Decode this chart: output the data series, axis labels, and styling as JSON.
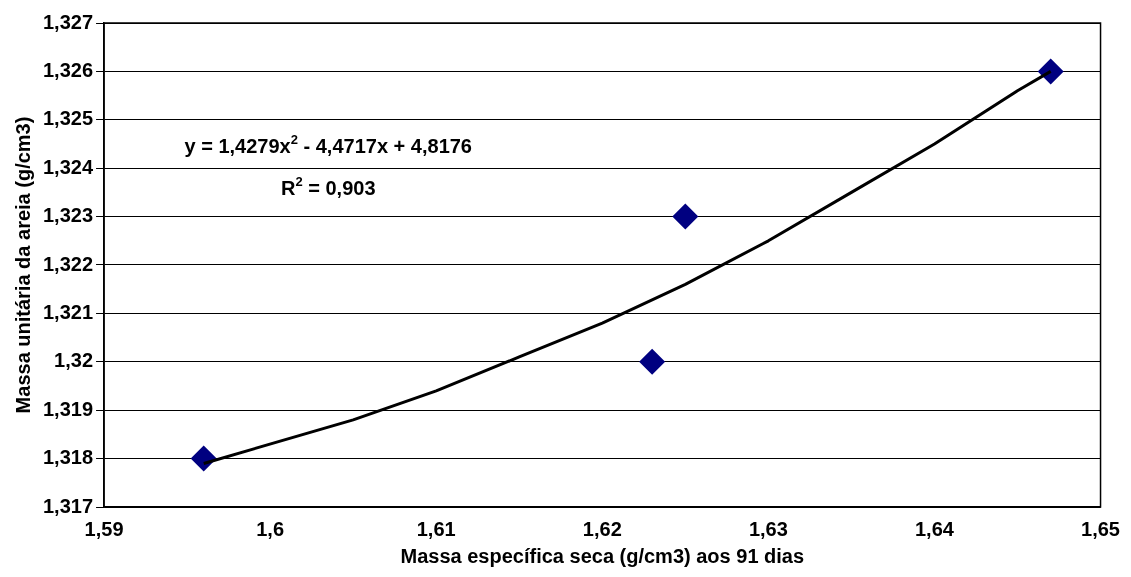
{
  "chart_data": {
    "type": "scatter",
    "xlabel": "Massa específica seca (g/cm3) aos 91 dias",
    "ylabel": "Massa unitária da areia (g/cm3)",
    "series": [
      {
        "type": "scatter",
        "color": "#000080",
        "marker": "diamond",
        "x": [
          1.596,
          1.623,
          1.625,
          1.647
        ],
        "values": [
          1.318,
          1.32,
          1.323,
          1.326
        ]
      },
      {
        "type": "line",
        "color": "#000000",
        "marker": "none",
        "line_style": "solid",
        "x": [
          1.596,
          1.605,
          1.61,
          1.615,
          1.62,
          1.625,
          1.63,
          1.635,
          1.64,
          1.645,
          1.647
        ],
        "values": [
          1.3179,
          1.3188,
          1.3194,
          1.3201,
          1.3208,
          1.3216,
          1.3225,
          1.3235,
          1.3245,
          1.3256,
          1.326
        ]
      }
    ],
    "xlim": [
      1.59,
      1.65
    ],
    "xticks": [
      {
        "value": 1.59,
        "label": "1,59"
      },
      {
        "value": 1.6,
        "label": "1,6"
      },
      {
        "value": 1.61,
        "label": "1,61"
      },
      {
        "value": 1.62,
        "label": "1,62"
      },
      {
        "value": 1.63,
        "label": "1,63"
      },
      {
        "value": 1.64,
        "label": "1,64"
      },
      {
        "value": 1.65,
        "label": "1,65"
      }
    ],
    "ylim": [
      1.317,
      1.327
    ],
    "yticks": [
      {
        "value": 1.317,
        "label": "1,317"
      },
      {
        "value": 1.318,
        "label": "1,318"
      },
      {
        "value": 1.319,
        "label": "1,319"
      },
      {
        "value": 1.32,
        "label": "1,32"
      },
      {
        "value": 1.321,
        "label": "1,321"
      },
      {
        "value": 1.322,
        "label": "1,322"
      },
      {
        "value": 1.323,
        "label": "1,323"
      },
      {
        "value": 1.324,
        "label": "1,324"
      },
      {
        "value": 1.325,
        "label": "1,325"
      },
      {
        "value": 1.326,
        "label": "1,326"
      },
      {
        "value": 1.327,
        "label": "1,327"
      }
    ],
    "grid": "y",
    "legend": false,
    "annotations": [
      "y = 1,4279x$^{2}$ - 4,4717x + 4,8176",
      "R$^{2}$ = 0,903"
    ]
  }
}
